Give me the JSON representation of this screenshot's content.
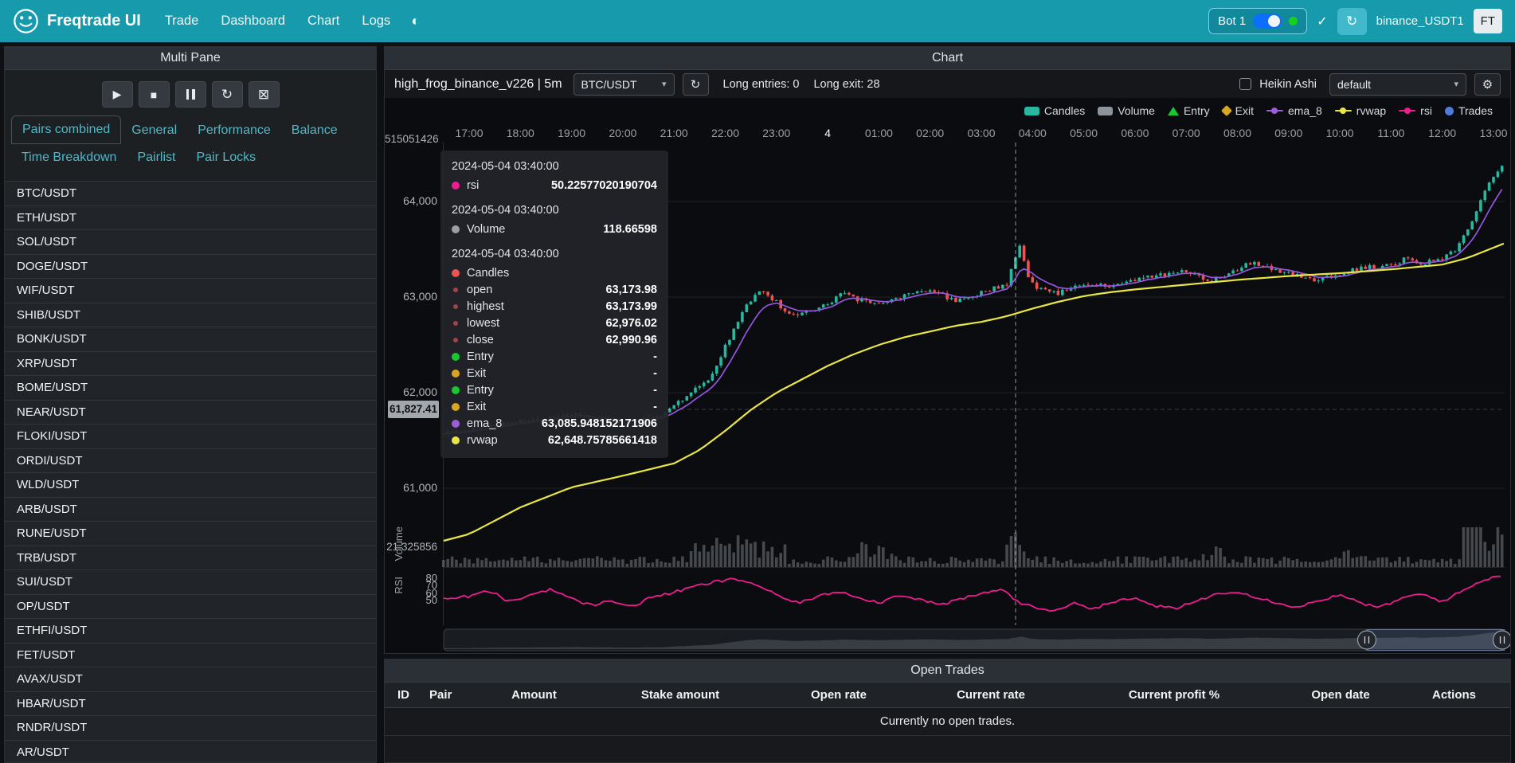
{
  "navbar": {
    "brand": "Freqtrade UI",
    "links": [
      "Trade",
      "Dashboard",
      "Chart",
      "Logs"
    ],
    "bot": {
      "name": "Bot 1"
    },
    "exchange": "binance_USDT1",
    "avatar": "FT"
  },
  "sidebar": {
    "title": "Multi Pane",
    "tabs_row1": [
      "Pairs combined",
      "General",
      "Performance",
      "Balance"
    ],
    "tabs_row2": [
      "Time Breakdown",
      "Pairlist",
      "Pair Locks"
    ],
    "active_tab": "Pairs combined",
    "pairs": [
      "BTC/USDT",
      "ETH/USDT",
      "SOL/USDT",
      "DOGE/USDT",
      "WIF/USDT",
      "SHIB/USDT",
      "BONK/USDT",
      "XRP/USDT",
      "BOME/USDT",
      "NEAR/USDT",
      "FLOKI/USDT",
      "ORDI/USDT",
      "WLD/USDT",
      "ARB/USDT",
      "RUNE/USDT",
      "TRB/USDT",
      "SUI/USDT",
      "OP/USDT",
      "ETHFI/USDT",
      "FET/USDT",
      "AVAX/USDT",
      "HBAR/USDT",
      "RNDR/USDT",
      "AR/USDT"
    ]
  },
  "chart_card": {
    "title": "Chart",
    "strategy": "high_frog_binance_v226 | 5m",
    "pair_select": "BTC/USDT",
    "long_entries": "Long entries: 0",
    "long_exit": "Long exit: 28",
    "heikin_label": "Heikin Ashi",
    "plot_config": "default"
  },
  "chart": {
    "legend": [
      {
        "label": "Candles",
        "type": "rect",
        "color": "#2ab7a0"
      },
      {
        "label": "Volume",
        "type": "rect",
        "color": "#8d949b"
      },
      {
        "label": "Entry",
        "type": "triangle",
        "color": "#17c831"
      },
      {
        "label": "Exit",
        "type": "diamond",
        "color": "#d9a621"
      },
      {
        "label": "ema_8",
        "type": "line",
        "color": "#9a5fd8"
      },
      {
        "label": "rvwap",
        "type": "line",
        "color": "#e9e546"
      },
      {
        "label": "rsi",
        "type": "line",
        "color": "#ee1d8f"
      },
      {
        "label": "Trades",
        "type": "circle",
        "color": "#4d7dd6"
      }
    ],
    "x_labels": [
      "17:00",
      "18:00",
      "19:00",
      "20:00",
      "21:00",
      "22:00",
      "23:00",
      "4",
      "01:00",
      "02:00",
      "03:00",
      "04:00",
      "05:00",
      "06:00",
      "07:00",
      "08:00",
      "09:00",
      "10:00",
      "11:00",
      "12:00",
      "13:00"
    ],
    "y_labels": [
      "64,000",
      "63,000",
      "62,000",
      "61,000"
    ],
    "top_axis_label": "515051426",
    "volume_axis_label": "21.325856",
    "volume_pane_label": "Volume",
    "rsi_pane_label": "RSI",
    "rsi_labels": [
      "80",
      "70",
      "60",
      "50"
    ],
    "price_tag": "61,827.41",
    "colors": {
      "up": "#2ab7a0",
      "down": "#ef5350",
      "ema": "#9455e0",
      "rvwap": "#e9e546",
      "rsi": "#ee1d8f",
      "volume": "#7f868d"
    }
  },
  "chart_data": {
    "type": "candlestick",
    "timeframe": "5m",
    "price_anchors": [
      [
        -0.5,
        61580
      ],
      [
        0,
        61620
      ],
      [
        1,
        61700
      ],
      [
        2,
        61770
      ],
      [
        3,
        61690
      ],
      [
        3.8,
        61760
      ],
      [
        4.2,
        61950
      ],
      [
        4.7,
        62150
      ],
      [
        5.0,
        62480
      ],
      [
        5.4,
        62900
      ],
      [
        5.7,
        63080
      ],
      [
        6.0,
        62950
      ],
      [
        6.3,
        62790
      ],
      [
        6.7,
        62870
      ],
      [
        7.0,
        62920
      ],
      [
        7.3,
        63070
      ],
      [
        7.6,
        62970
      ],
      [
        8.0,
        62940
      ],
      [
        8.5,
        63010
      ],
      [
        9.0,
        63090
      ],
      [
        9.5,
        62950
      ],
      [
        10.0,
        63050
      ],
      [
        10.5,
        63140
      ],
      [
        10.6,
        63300
      ],
      [
        10.75,
        63560
      ],
      [
        10.9,
        63230
      ],
      [
        11.1,
        63090
      ],
      [
        11.5,
        63040
      ],
      [
        12.0,
        63140
      ],
      [
        12.5,
        63110
      ],
      [
        13.0,
        63180
      ],
      [
        13.5,
        63230
      ],
      [
        14.0,
        63270
      ],
      [
        14.5,
        63170
      ],
      [
        15.0,
        63290
      ],
      [
        15.3,
        63370
      ],
      [
        15.7,
        63290
      ],
      [
        16.0,
        63250
      ],
      [
        16.5,
        63170
      ],
      [
        17.0,
        63250
      ],
      [
        17.5,
        63310
      ],
      [
        18.0,
        63330
      ],
      [
        18.3,
        63410
      ],
      [
        18.6,
        63350
      ],
      [
        19.0,
        63410
      ],
      [
        19.3,
        63520
      ],
      [
        19.6,
        63800
      ],
      [
        19.85,
        64150
      ],
      [
        20.2,
        64420
      ]
    ],
    "rvwap_anchors": [
      [
        -0.5,
        60450
      ],
      [
        0,
        60520
      ],
      [
        1,
        60800
      ],
      [
        2,
        61010
      ],
      [
        3,
        61130
      ],
      [
        4,
        61260
      ],
      [
        4.5,
        61400
      ],
      [
        5,
        61600
      ],
      [
        5.5,
        61820
      ],
      [
        6,
        62000
      ],
      [
        6.5,
        62140
      ],
      [
        7,
        62280
      ],
      [
        7.5,
        62400
      ],
      [
        8,
        62500
      ],
      [
        8.5,
        62580
      ],
      [
        9,
        62640
      ],
      [
        9.5,
        62700
      ],
      [
        10,
        62740
      ],
      [
        10.5,
        62800
      ],
      [
        11,
        62880
      ],
      [
        11.5,
        62950
      ],
      [
        12,
        63010
      ],
      [
        12.5,
        63050
      ],
      [
        13,
        63080
      ],
      [
        14,
        63130
      ],
      [
        15,
        63180
      ],
      [
        16,
        63220
      ],
      [
        17,
        63250
      ],
      [
        18,
        63290
      ],
      [
        19,
        63340
      ],
      [
        19.5,
        63410
      ],
      [
        20.2,
        63560
      ]
    ],
    "rsi_anchors": [
      [
        -0.5,
        52
      ],
      [
        0,
        56
      ],
      [
        0.4,
        63
      ],
      [
        0.8,
        48
      ],
      [
        1.2,
        58
      ],
      [
        1.6,
        66
      ],
      [
        2,
        52
      ],
      [
        2.4,
        44
      ],
      [
        2.8,
        50
      ],
      [
        3.2,
        42
      ],
      [
        3.6,
        56
      ],
      [
        4,
        61
      ],
      [
        4.4,
        69
      ],
      [
        4.8,
        75
      ],
      [
        5.2,
        79
      ],
      [
        5.6,
        72
      ],
      [
        6,
        57
      ],
      [
        6.4,
        47
      ],
      [
        6.8,
        55
      ],
      [
        7.2,
        63
      ],
      [
        7.6,
        55
      ],
      [
        8,
        47
      ],
      [
        8.4,
        58
      ],
      [
        8.8,
        52
      ],
      [
        9.2,
        44
      ],
      [
        9.6,
        52
      ],
      [
        10,
        59
      ],
      [
        10.4,
        66
      ],
      [
        10.67,
        50
      ],
      [
        11,
        41
      ],
      [
        11.4,
        37
      ],
      [
        11.8,
        46
      ],
      [
        12.2,
        40
      ],
      [
        12.6,
        49
      ],
      [
        13,
        53
      ],
      [
        13.4,
        43
      ],
      [
        13.8,
        39
      ],
      [
        14.2,
        50
      ],
      [
        14.6,
        59
      ],
      [
        15,
        63
      ],
      [
        15.4,
        54
      ],
      [
        15.8,
        47
      ],
      [
        16.2,
        41
      ],
      [
        16.6,
        51
      ],
      [
        17,
        57
      ],
      [
        17.4,
        47
      ],
      [
        17.8,
        41
      ],
      [
        18.2,
        53
      ],
      [
        18.6,
        59
      ],
      [
        19,
        49
      ],
      [
        19.4,
        63
      ],
      [
        19.8,
        78
      ],
      [
        20.2,
        85
      ]
    ],
    "volume_spikes": [
      [
        4.3,
        6.2,
        3.0
      ],
      [
        7.4,
        8.3,
        2.2
      ],
      [
        10.45,
        10.85,
        4.2
      ],
      [
        14.2,
        14.8,
        2.4
      ],
      [
        16.9,
        17.2,
        2.0
      ],
      [
        19.4,
        20.2,
        5.5
      ]
    ]
  },
  "tooltip": {
    "sections": [
      {
        "time": "2024-05-04 03:40:00",
        "rows": [
          {
            "label": "rsi",
            "value": "50.22577020190704",
            "color": "#ee1d8f"
          }
        ]
      },
      {
        "time": "2024-05-04 03:40:00",
        "rows": [
          {
            "label": "Volume",
            "value": "118.66598",
            "color": "#9aa0a6"
          }
        ]
      },
      {
        "time": "2024-05-04 03:40:00",
        "rows": [
          {
            "label": "Candles",
            "value": "",
            "color": "#ef5350"
          },
          {
            "label": "open",
            "value": "63,173.98",
            "color": "#a04545",
            "small": true
          },
          {
            "label": "highest",
            "value": "63,173.99",
            "color": "#a04545",
            "small": true
          },
          {
            "label": "lowest",
            "value": "62,976.02",
            "color": "#a04545",
            "small": true
          },
          {
            "label": "close",
            "value": "62,990.96",
            "color": "#a04545",
            "small": true
          },
          {
            "label": "Entry",
            "value": "-",
            "color": "#17c831"
          },
          {
            "label": "Exit",
            "value": "-",
            "color": "#d9a621"
          },
          {
            "label": "Entry",
            "value": "-",
            "color": "#17c831"
          },
          {
            "label": "Exit",
            "value": "-",
            "color": "#d9a621"
          },
          {
            "label": "ema_8",
            "value": "63,085.948152171906",
            "color": "#9a5fd8"
          },
          {
            "label": "rvwap",
            "value": "62,648.75785661418",
            "color": "#e9e546"
          }
        ]
      }
    ]
  },
  "open_trades": {
    "title": "Open Trades",
    "columns": [
      "ID",
      "Pair",
      "Amount",
      "Stake amount",
      "Open rate",
      "Current rate",
      "Current profit %",
      "Open date",
      "Actions"
    ],
    "empty": "Currently no open trades."
  }
}
